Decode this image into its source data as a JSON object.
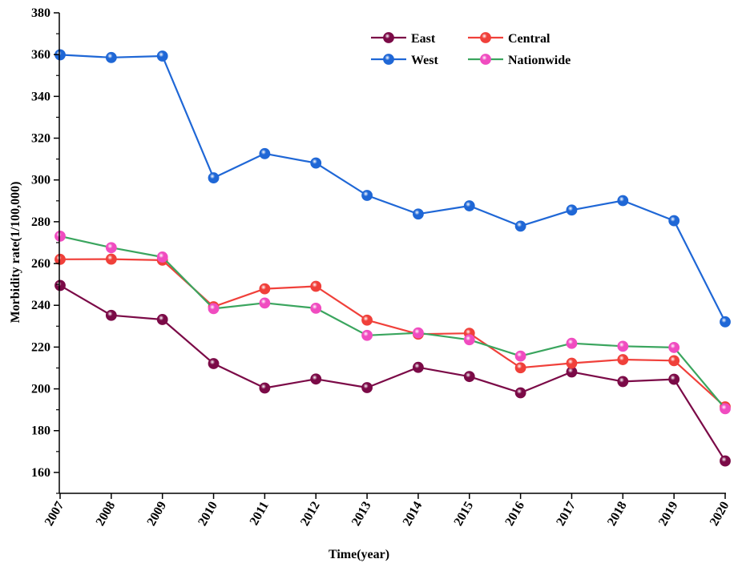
{
  "chart_data": {
    "type": "line",
    "xlabel": "Time(year)",
    "ylabel": "Morbidity rate(1/100,000)",
    "ylim": [
      150,
      380
    ],
    "yticks": [
      160,
      180,
      200,
      220,
      240,
      260,
      280,
      300,
      320,
      340,
      360,
      380
    ],
    "categories": [
      "2007",
      "2008",
      "2009",
      "2010",
      "2011",
      "2012",
      "2013",
      "2014",
      "2015",
      "2016",
      "2017",
      "2018",
      "2019",
      "2020"
    ],
    "legend_position": "top-right",
    "grid": false,
    "series": [
      {
        "name": "East",
        "color": "#7b0a47",
        "values": [
          249.5,
          235.2,
          233.2,
          212.1,
          200.4,
          204.7,
          200.6,
          210.3,
          205.9,
          198.1,
          208.1,
          203.5,
          204.6,
          165.5
        ]
      },
      {
        "name": "Central",
        "color": "#f0403a",
        "values": [
          262.0,
          262.1,
          261.6,
          239.3,
          247.9,
          249.1,
          232.9,
          226.2,
          226.6,
          210.1,
          212.3,
          214.0,
          213.5,
          191.4
        ]
      },
      {
        "name": "West",
        "color": "#1f67d6",
        "values": [
          359.9,
          358.6,
          359.3,
          301.0,
          312.6,
          308.1,
          292.6,
          283.7,
          287.6,
          277.9,
          285.6,
          290.1,
          280.5,
          232.1
        ]
      },
      {
        "name": "Nationwide",
        "color": "#3aa55e",
        "marker_color": "#f04cc0",
        "values": [
          273.1,
          267.6,
          263.1,
          238.4,
          241.1,
          238.6,
          225.6,
          226.8,
          223.5,
          215.7,
          221.8,
          220.4,
          219.8,
          190.5
        ]
      }
    ]
  }
}
